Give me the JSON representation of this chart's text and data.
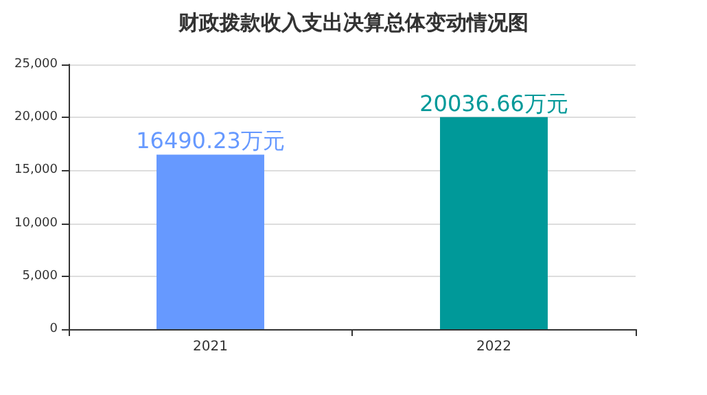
{
  "chart_data": {
    "type": "bar",
    "title": "财政拨款收入支出决算总体变动情况图",
    "categories": [
      "2021",
      "2022"
    ],
    "values": [
      16490.23,
      20036.66
    ],
    "colors": [
      "#6699ff",
      "#009999"
    ],
    "value_labels": [
      "16490.23万元",
      "20036.66万元"
    ],
    "ylim": [
      0,
      25000
    ],
    "yticks": [
      {
        "value": 0,
        "label": "0"
      },
      {
        "value": 5000,
        "label": "5,000"
      },
      {
        "value": 10000,
        "label": "10,000"
      },
      {
        "value": 15000,
        "label": "15,000"
      },
      {
        "value": 20000,
        "label": "20,000"
      },
      {
        "value": 25000,
        "label": "25,000"
      }
    ],
    "grid": "y"
  }
}
